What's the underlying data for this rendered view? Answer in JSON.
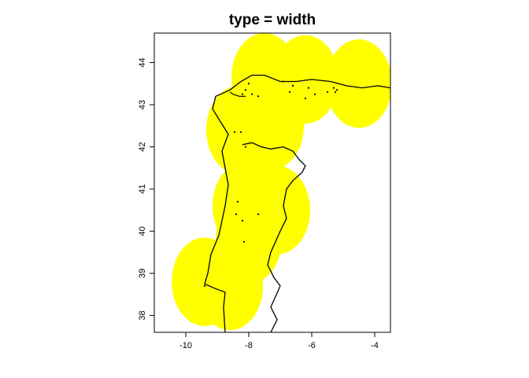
{
  "chart_data": {
    "type": "map",
    "title": "type = width",
    "xlim": [
      -11,
      -3.5
    ],
    "ylim": [
      37.6,
      44.7
    ],
    "x_ticks": [
      -10,
      -8,
      -6,
      -4
    ],
    "y_ticks": [
      38,
      39,
      40,
      41,
      42,
      43,
      44
    ],
    "fill_color": "#ffff00",
    "line_color": "#000000",
    "buffer_radius_deg": 1.05,
    "buffer_centers": [
      [
        -7.5,
        43.65
      ],
      [
        -6.2,
        43.6
      ],
      [
        -4.5,
        43.5
      ],
      [
        -8.3,
        42.4
      ],
      [
        -7.3,
        42.5
      ],
      [
        -8.1,
        40.6
      ],
      [
        -7.1,
        40.5
      ],
      [
        -8.0,
        39.8
      ],
      [
        -9.4,
        38.8
      ],
      [
        -8.6,
        38.7
      ]
    ],
    "points": [
      [
        -8.0,
        43.5
      ],
      [
        -8.1,
        43.35
      ],
      [
        -7.9,
        43.25
      ],
      [
        -8.2,
        43.25
      ],
      [
        -7.7,
        43.2
      ],
      [
        -6.9,
        43.55
      ],
      [
        -6.6,
        43.45
      ],
      [
        -6.7,
        43.3
      ],
      [
        -6.1,
        43.4
      ],
      [
        -5.9,
        43.25
      ],
      [
        -6.2,
        43.15
      ],
      [
        -5.5,
        43.3
      ],
      [
        -5.3,
        43.4
      ],
      [
        -5.2,
        43.35
      ],
      [
        -5.25,
        43.3
      ],
      [
        -8.45,
        42.35
      ],
      [
        -8.25,
        42.35
      ],
      [
        -8.1,
        42.0
      ],
      [
        -8.35,
        40.7
      ],
      [
        -7.7,
        40.4
      ],
      [
        -8.4,
        40.4
      ],
      [
        -8.2,
        40.25
      ],
      [
        -8.15,
        39.75
      ],
      [
        -9.4,
        38.7
      ]
    ],
    "coastline": [
      [
        -8.75,
        37.6
      ],
      [
        -8.78,
        37.95
      ],
      [
        -8.8,
        38.2
      ],
      [
        -8.75,
        38.55
      ],
      [
        -9.1,
        38.65
      ],
      [
        -9.4,
        38.75
      ],
      [
        -9.3,
        39.0
      ],
      [
        -9.2,
        39.45
      ],
      [
        -8.95,
        39.9
      ],
      [
        -8.75,
        40.6
      ],
      [
        -8.65,
        41.1
      ],
      [
        -8.75,
        41.5
      ],
      [
        -8.85,
        41.9
      ],
      [
        -8.65,
        42.3
      ],
      [
        -8.9,
        42.6
      ],
      [
        -9.15,
        42.9
      ],
      [
        -9.05,
        43.2
      ],
      [
        -8.6,
        43.35
      ],
      [
        -8.25,
        43.55
      ],
      [
        -7.9,
        43.7
      ],
      [
        -7.5,
        43.7
      ],
      [
        -7.0,
        43.55
      ],
      [
        -6.5,
        43.55
      ],
      [
        -6.0,
        43.6
      ],
      [
        -5.4,
        43.55
      ],
      [
        -4.9,
        43.45
      ],
      [
        -4.4,
        43.4
      ],
      [
        -3.9,
        43.45
      ],
      [
        -3.5,
        43.4
      ]
    ],
    "border": [
      [
        -8.2,
        42.05
      ],
      [
        -7.9,
        42.1
      ],
      [
        -7.6,
        42.0
      ],
      [
        -7.3,
        41.95
      ],
      [
        -6.9,
        42.0
      ],
      [
        -6.6,
        41.9
      ],
      [
        -6.4,
        41.7
      ],
      [
        -6.2,
        41.55
      ],
      [
        -6.3,
        41.4
      ],
      [
        -6.6,
        41.2
      ],
      [
        -6.8,
        41.0
      ],
      [
        -6.9,
        40.6
      ],
      [
        -6.8,
        40.3
      ],
      [
        -7.0,
        40.0
      ],
      [
        -7.3,
        39.5
      ],
      [
        -7.4,
        39.2
      ],
      [
        -7.2,
        38.9
      ],
      [
        -7.0,
        38.7
      ],
      [
        -7.3,
        38.2
      ],
      [
        -7.1,
        37.9
      ],
      [
        -7.3,
        37.6
      ]
    ],
    "inner_line": [
      [
        -8.6,
        43.3
      ],
      [
        -8.5,
        43.25
      ],
      [
        -8.3,
        43.2
      ],
      [
        -8.1,
        43.2
      ]
    ]
  }
}
